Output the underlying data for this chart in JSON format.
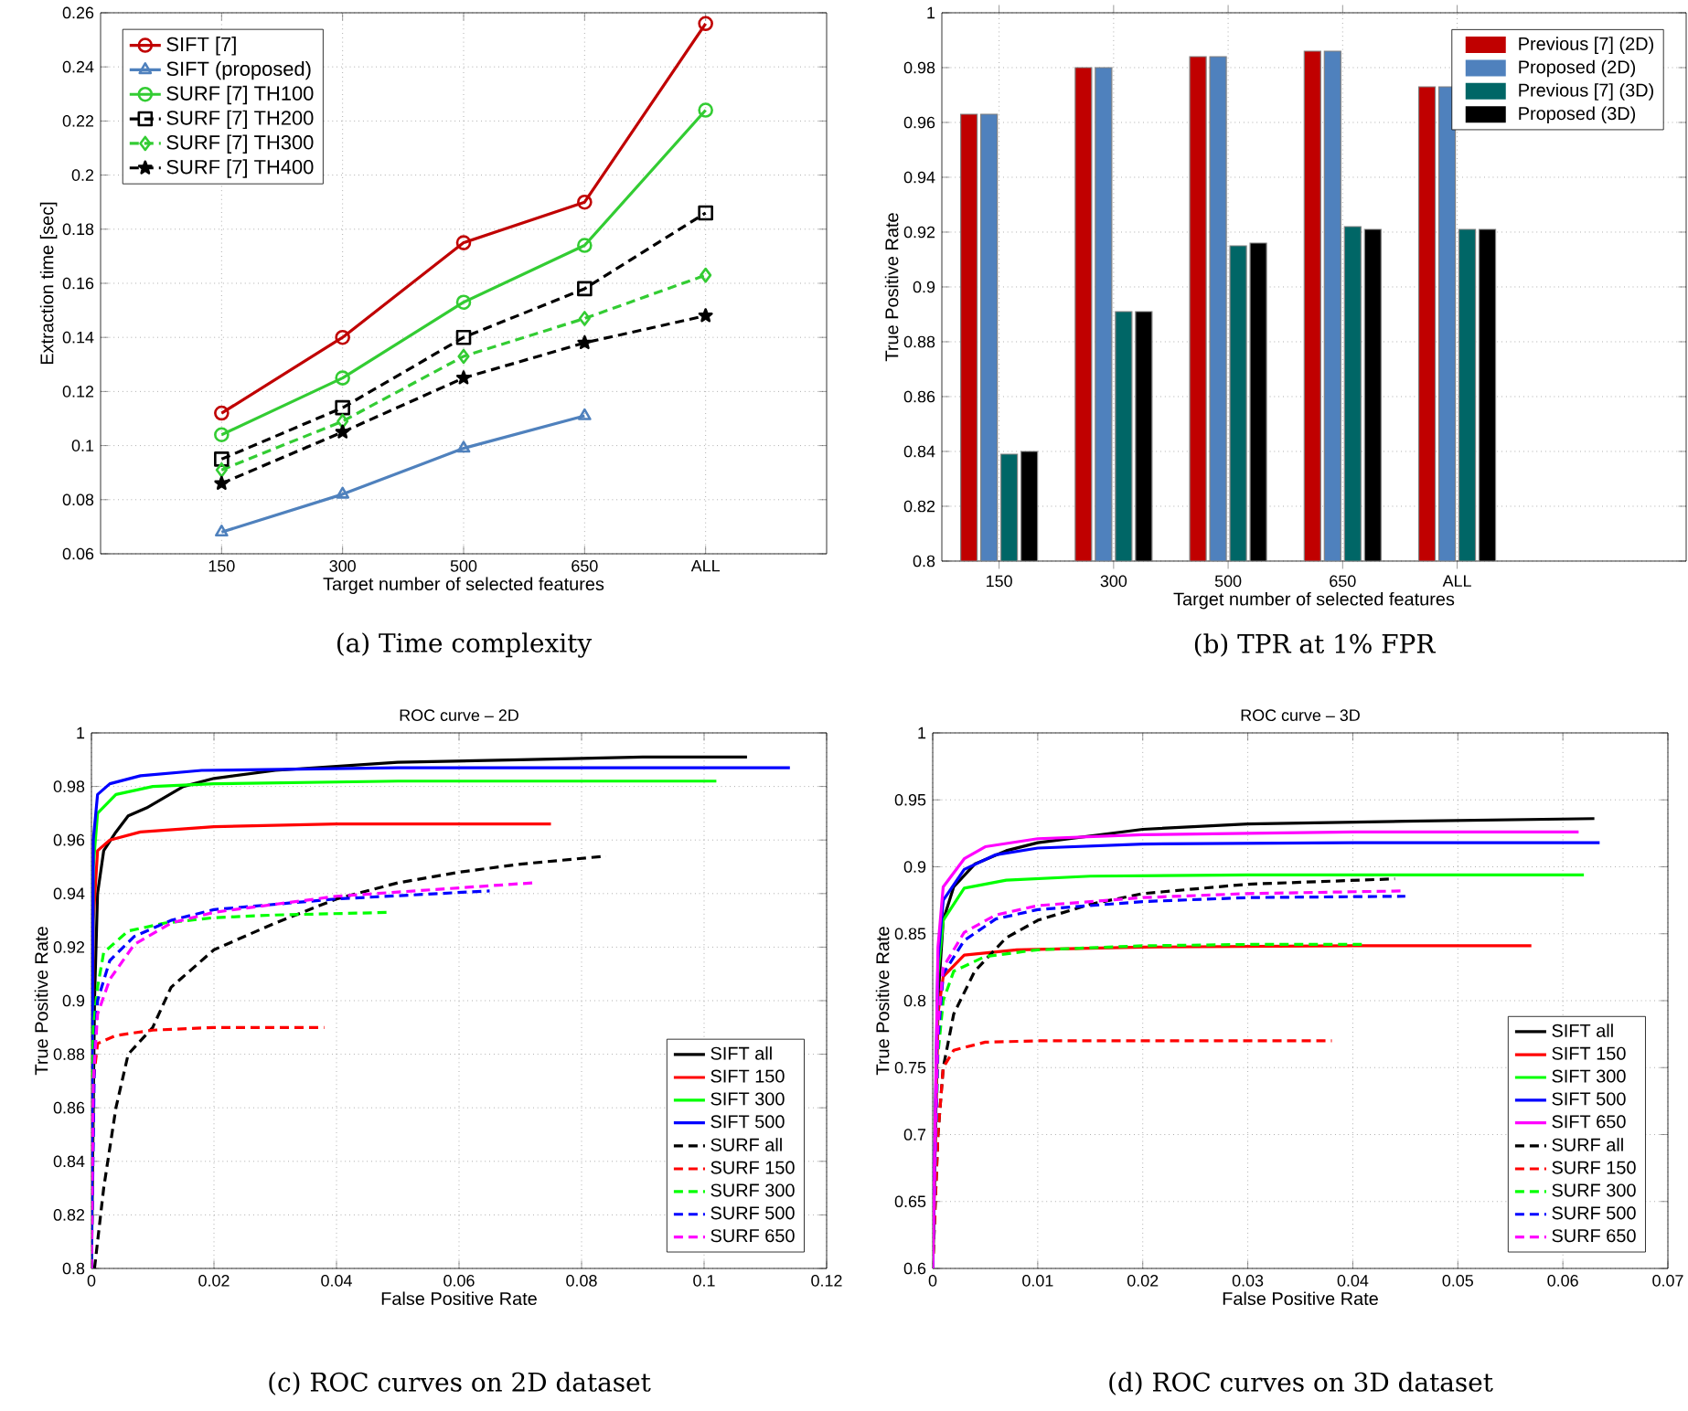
{
  "chart_data": [
    {
      "type": "line",
      "xlabel": "Target number of selected features",
      "ylabel": "Extraction time [sec]",
      "categories": [
        "150",
        "300",
        "500",
        "650",
        "ALL"
      ],
      "ylim": [
        0.06,
        0.26
      ],
      "yticks": [
        0.06,
        0.08,
        0.1,
        0.12,
        0.14,
        0.16,
        0.18,
        0.2,
        0.22,
        0.24,
        0.26
      ],
      "grid": true,
      "legend": "top left",
      "annotations": [
        "(a) Time complexity"
      ],
      "series": [
        {
          "name": "SIFT [7]",
          "color": "#c00000",
          "marker": "circle",
          "line_style": "solid",
          "values": [
            0.112,
            0.14,
            0.175,
            0.19,
            0.256
          ]
        },
        {
          "name": "SIFT (proposed)",
          "color": "#4f81bd",
          "marker": "triangle",
          "line_style": "solid",
          "values": [
            0.068,
            0.082,
            0.099,
            0.111,
            null
          ]
        },
        {
          "name": "SURF [7] TH100",
          "color": "#33cc33",
          "marker": "circle",
          "line_style": "solid",
          "values": [
            0.104,
            0.125,
            0.153,
            0.174,
            0.224
          ]
        },
        {
          "name": "SURF [7] TH200",
          "color": "#000000",
          "marker": "square",
          "line_style": "dashed",
          "values": [
            0.095,
            0.114,
            0.14,
            0.158,
            0.186
          ]
        },
        {
          "name": "SURF [7] TH300",
          "color": "#33cc33",
          "marker": "diamond",
          "line_style": "dashed",
          "values": [
            0.091,
            0.109,
            0.133,
            0.147,
            0.163
          ]
        },
        {
          "name": "SURF [7] TH400",
          "color": "#000000",
          "marker": "star",
          "line_style": "dashed",
          "values": [
            0.086,
            0.105,
            0.125,
            0.138,
            0.148
          ]
        }
      ]
    },
    {
      "type": "bar",
      "xlabel": "Target number of selected features",
      "ylabel": "True Positive Rate",
      "categories": [
        "150",
        "300",
        "500",
        "650",
        "ALL"
      ],
      "ylim": [
        0.8,
        1
      ],
      "yticks": [
        0.8,
        0.82,
        0.84,
        0.86,
        0.88,
        0.9,
        0.92,
        0.94,
        0.96,
        0.98,
        1
      ],
      "grid": true,
      "legend": "top right",
      "annotations": [
        "(b) TPR at 1% FPR"
      ],
      "series": [
        {
          "name": "Previous [7] (2D)",
          "color": "#c00000",
          "values": [
            0.963,
            0.98,
            0.984,
            0.986,
            0.973
          ]
        },
        {
          "name": "Proposed (2D)",
          "color": "#4f81bd",
          "values": [
            0.963,
            0.98,
            0.984,
            0.986,
            0.973
          ]
        },
        {
          "name": "Previous [7] (3D)",
          "color": "#006666",
          "values": [
            0.839,
            0.891,
            0.915,
            0.922,
            0.921
          ]
        },
        {
          "name": "Proposed (3D)",
          "color": "#000000",
          "values": [
            0.84,
            0.891,
            0.916,
            0.921,
            0.921
          ]
        }
      ]
    },
    {
      "type": "line",
      "title": "ROC curve – 2D",
      "xlabel": "False Positive Rate",
      "ylabel": "True Positive Rate",
      "xlim": [
        0,
        0.12
      ],
      "xticks": [
        0,
        0.02,
        0.04,
        0.06,
        0.08,
        0.1,
        0.12
      ],
      "ylim": [
        0.8,
        1
      ],
      "yticks": [
        0.8,
        0.82,
        0.84,
        0.86,
        0.88,
        0.9,
        0.92,
        0.94,
        0.96,
        0.98,
        1
      ],
      "grid": true,
      "legend": "bottom right",
      "annotations": [
        "(c) ROC curves on 2D dataset"
      ],
      "series": [
        {
          "name": "SIFT all",
          "color": "#000000",
          "line_style": "solid",
          "x": [
            0,
            0.0005,
            0.001,
            0.002,
            0.004,
            0.006,
            0.009,
            0.012,
            0.015,
            0.02,
            0.03,
            0.05,
            0.07,
            0.09,
            0.107
          ],
          "values": [
            0.8,
            0.9,
            0.94,
            0.956,
            0.963,
            0.969,
            0.972,
            0.976,
            0.98,
            0.983,
            0.986,
            0.989,
            0.99,
            0.991,
            0.991
          ]
        },
        {
          "name": "SIFT 150",
          "color": "#ff0000",
          "line_style": "solid",
          "x": [
            0,
            0.0003,
            0.001,
            0.003,
            0.008,
            0.02,
            0.04,
            0.075
          ],
          "values": [
            0.8,
            0.93,
            0.956,
            0.96,
            0.963,
            0.965,
            0.966,
            0.966
          ]
        },
        {
          "name": "SIFT 300",
          "color": "#00ff00",
          "line_style": "solid",
          "x": [
            0,
            0.0003,
            0.001,
            0.004,
            0.01,
            0.02,
            0.05,
            0.102
          ],
          "values": [
            0.8,
            0.95,
            0.97,
            0.977,
            0.98,
            0.981,
            0.982,
            0.982
          ]
        },
        {
          "name": "SIFT 500",
          "color": "#0000ff",
          "line_style": "solid",
          "x": [
            0,
            0.0003,
            0.001,
            0.003,
            0.008,
            0.018,
            0.05,
            0.114
          ],
          "values": [
            0.8,
            0.96,
            0.977,
            0.981,
            0.984,
            0.986,
            0.987,
            0.987
          ]
        },
        {
          "name": "SURF all",
          "color": "#000000",
          "line_style": "dashed",
          "x": [
            0.0005,
            0.001,
            0.002,
            0.004,
            0.006,
            0.01,
            0.013,
            0.02,
            0.03,
            0.04,
            0.05,
            0.06,
            0.07,
            0.084
          ],
          "values": [
            0.8,
            0.81,
            0.83,
            0.86,
            0.88,
            0.89,
            0.905,
            0.919,
            0.929,
            0.938,
            0.944,
            0.948,
            0.951,
            0.954
          ]
        },
        {
          "name": "SURF 150",
          "color": "#ff0000",
          "line_style": "dashed",
          "x": [
            0,
            0.0003,
            0.001,
            0.004,
            0.01,
            0.02,
            0.038
          ],
          "values": [
            0.8,
            0.87,
            0.884,
            0.887,
            0.889,
            0.89,
            0.89
          ]
        },
        {
          "name": "SURF 300",
          "color": "#00ff00",
          "line_style": "dashed",
          "x": [
            0,
            0.0003,
            0.001,
            0.002,
            0.006,
            0.012,
            0.02,
            0.03,
            0.049
          ],
          "values": [
            0.8,
            0.89,
            0.905,
            0.918,
            0.926,
            0.929,
            0.931,
            0.932,
            0.933
          ]
        },
        {
          "name": "SURF 500",
          "color": "#0000ff",
          "line_style": "dashed",
          "x": [
            0,
            0.0005,
            0.001,
            0.003,
            0.007,
            0.013,
            0.02,
            0.04,
            0.065
          ],
          "values": [
            0.8,
            0.88,
            0.9,
            0.915,
            0.924,
            0.93,
            0.934,
            0.938,
            0.941
          ]
        },
        {
          "name": "SURF 650",
          "color": "#ff00ff",
          "line_style": "dashed",
          "x": [
            0,
            0.0003,
            0.001,
            0.003,
            0.007,
            0.013,
            0.02,
            0.04,
            0.072
          ],
          "values": [
            0.8,
            0.87,
            0.895,
            0.908,
            0.921,
            0.929,
            0.933,
            0.939,
            0.944
          ]
        }
      ]
    },
    {
      "type": "line",
      "title": "ROC curve – 3D",
      "xlabel": "False Positive Rate",
      "ylabel": "True Positive Rate",
      "xlim": [
        0,
        0.07
      ],
      "xticks": [
        0,
        0.01,
        0.02,
        0.03,
        0.04,
        0.05,
        0.06,
        0.07
      ],
      "ylim": [
        0.6,
        1
      ],
      "yticks": [
        0.6,
        0.65,
        0.7,
        0.75,
        0.8,
        0.85,
        0.9,
        0.95,
        1
      ],
      "grid": true,
      "legend": "bottom right",
      "annotations": [
        "(d) ROC curves on 3D dataset"
      ],
      "series": [
        {
          "name": "SIFT all",
          "color": "#000000",
          "line_style": "solid",
          "x": [
            0,
            0.0005,
            0.001,
            0.002,
            0.004,
            0.007,
            0.01,
            0.02,
            0.03,
            0.045,
            0.063
          ],
          "values": [
            0.6,
            0.8,
            0.86,
            0.885,
            0.902,
            0.912,
            0.918,
            0.928,
            0.932,
            0.934,
            0.936
          ]
        },
        {
          "name": "SIFT 150",
          "color": "#ff0000",
          "line_style": "solid",
          "x": [
            0,
            0.0005,
            0.001,
            0.003,
            0.008,
            0.02,
            0.04,
            0.057
          ],
          "values": [
            0.6,
            0.79,
            0.818,
            0.834,
            0.838,
            0.84,
            0.841,
            0.841
          ]
        },
        {
          "name": "SIFT 300",
          "color": "#00ff00",
          "line_style": "solid",
          "x": [
            0,
            0.0005,
            0.001,
            0.003,
            0.007,
            0.015,
            0.03,
            0.062
          ],
          "values": [
            0.6,
            0.82,
            0.86,
            0.884,
            0.89,
            0.893,
            0.894,
            0.894
          ]
        },
        {
          "name": "SIFT 500",
          "color": "#0000ff",
          "line_style": "solid",
          "x": [
            0,
            0.0005,
            0.001,
            0.003,
            0.006,
            0.01,
            0.02,
            0.04,
            0.0635
          ],
          "values": [
            0.6,
            0.83,
            0.875,
            0.898,
            0.909,
            0.914,
            0.917,
            0.918,
            0.918
          ]
        },
        {
          "name": "SIFT 650",
          "color": "#ff00ff",
          "line_style": "solid",
          "x": [
            0,
            0.0005,
            0.001,
            0.003,
            0.005,
            0.01,
            0.02,
            0.04,
            0.0615
          ],
          "values": [
            0.6,
            0.84,
            0.885,
            0.906,
            0.915,
            0.921,
            0.924,
            0.926,
            0.926
          ]
        },
        {
          "name": "SURF all",
          "color": "#000000",
          "line_style": "dashed",
          "x": [
            0,
            0.0005,
            0.001,
            0.002,
            0.004,
            0.007,
            0.01,
            0.015,
            0.02,
            0.03,
            0.044
          ],
          "values": [
            0.6,
            0.7,
            0.75,
            0.79,
            0.822,
            0.847,
            0.86,
            0.872,
            0.88,
            0.887,
            0.891
          ]
        },
        {
          "name": "SURF 150",
          "color": "#ff0000",
          "line_style": "dashed",
          "x": [
            0,
            0.0005,
            0.001,
            0.002,
            0.005,
            0.01,
            0.02,
            0.038
          ],
          "values": [
            0.6,
            0.7,
            0.75,
            0.763,
            0.769,
            0.77,
            0.77,
            0.77
          ]
        },
        {
          "name": "SURF 300",
          "color": "#00ff00",
          "line_style": "dashed",
          "x": [
            0,
            0.0005,
            0.001,
            0.002,
            0.005,
            0.01,
            0.02,
            0.03,
            0.041
          ],
          "values": [
            0.6,
            0.76,
            0.8,
            0.822,
            0.833,
            0.838,
            0.841,
            0.842,
            0.842
          ]
        },
        {
          "name": "SURF 500",
          "color": "#0000ff",
          "line_style": "dashed",
          "x": [
            0,
            0.0005,
            0.001,
            0.003,
            0.006,
            0.01,
            0.02,
            0.03,
            0.045
          ],
          "values": [
            0.6,
            0.77,
            0.82,
            0.845,
            0.861,
            0.868,
            0.874,
            0.877,
            0.878
          ]
        },
        {
          "name": "SURF 650",
          "color": "#ff00ff",
          "line_style": "dashed",
          "x": [
            0,
            0.0005,
            0.001,
            0.003,
            0.006,
            0.01,
            0.02,
            0.03,
            0.045
          ],
          "values": [
            0.6,
            0.78,
            0.825,
            0.851,
            0.864,
            0.871,
            0.877,
            0.88,
            0.882
          ]
        }
      ]
    }
  ]
}
